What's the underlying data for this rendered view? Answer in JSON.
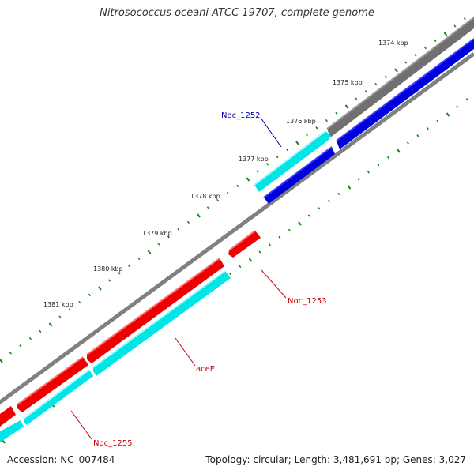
{
  "title": "Nitrosococcus oceani ATCC 19707, complete genome",
  "footer": {
    "accession": "Accession: NC_007484",
    "stats": "Topology: circular; Length: 3,481,691 bp; Genes: 3,027"
  },
  "ticks": [
    "1374 kbp",
    "1375 kbp",
    "1376 kbp",
    "1377 kbp",
    "1378 kbp",
    "1379 kbp",
    "1380 kbp",
    "1381 kbp"
  ],
  "genes": [
    {
      "name": "Noc_1252",
      "label_color": "#0000aa"
    },
    {
      "name": "Noc_1253",
      "label_color": "#cc0000"
    },
    {
      "name": "aceE",
      "label_color": "#cc0000"
    },
    {
      "name": "Noc_1255",
      "label_color": "#cc0000"
    }
  ],
  "colors": {
    "backbone": "#808080",
    "forward_gene": "#ee0000",
    "reverse_gene": "#00e5e5",
    "other_strand": "#0000dd",
    "tick_marks": "#118811"
  }
}
